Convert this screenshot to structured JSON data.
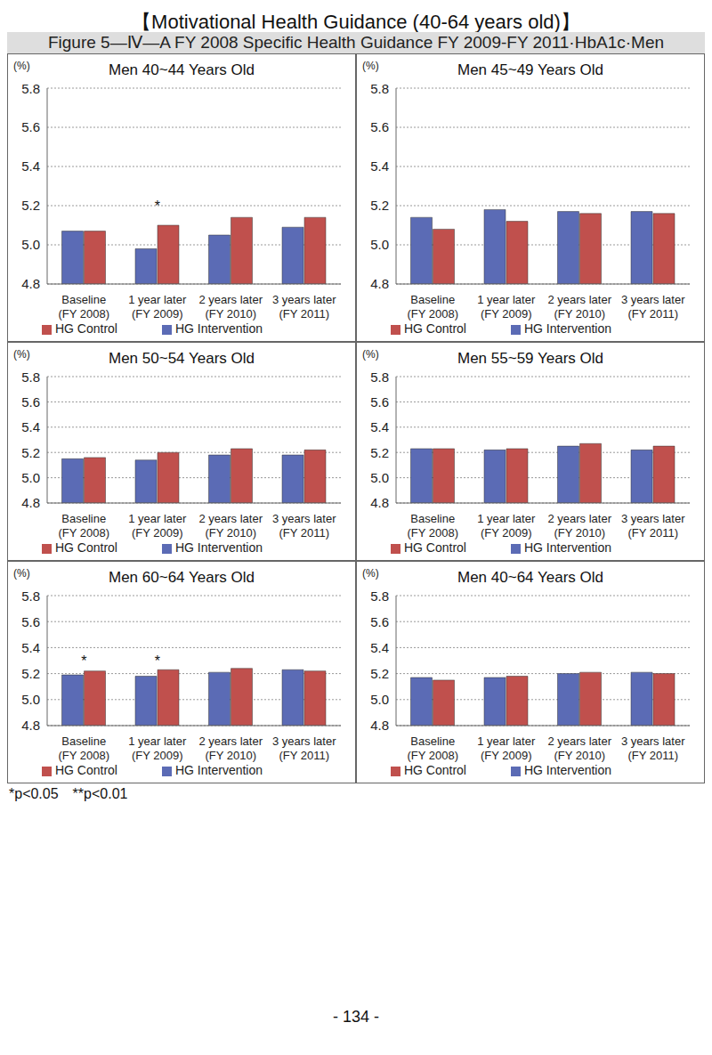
{
  "title": "【Motivational Health Guidance (40-64 years old)】",
  "figure_title": "Figure 5—Ⅳ—A FY 2008 Specific Health Guidance FY 2009-FY 2011·HbA1c·Men",
  "footnote": "*p<0.05　**p<0.01",
  "page_number": "- 134 -",
  "chart_data": [
    {
      "type": "bar",
      "title": "Men 40~44 Years Old",
      "y_label": "(%)",
      "categories": [
        "Baseline\n(FY 2008)",
        "1 year later\n(FY 2009)",
        "2 years later\n(FY 2010)",
        "3 years later\n(FY 2011)"
      ],
      "series": [
        {
          "name": "HG Intervention",
          "color": "#5b6bb5",
          "values": [
            5.07,
            4.98,
            5.05,
            5.09
          ]
        },
        {
          "name": "HG Control",
          "color": "#c0504d",
          "values": [
            5.07,
            5.1,
            5.14,
            5.14
          ]
        }
      ],
      "ylim": [
        4.8,
        5.8
      ],
      "yticks": [
        4.8,
        {
          "value": 5,
          "label": "5.0"
        },
        5.2,
        5.4,
        5.6,
        5.8
      ],
      "grid": true,
      "legend": "bottom",
      "annotations": [
        {
          "category": "1 year later\n(FY 2009)",
          "y": 5.2,
          "text": "*"
        }
      ]
    },
    {
      "type": "bar",
      "title": "Men 45~49 Years Old",
      "y_label": "(%)",
      "categories": [
        "Baseline\n(FY 2008)",
        "1 year later\n(FY 2009)",
        "2 years later\n(FY 2010)",
        "3 years later\n(FY 2011)"
      ],
      "series": [
        {
          "name": "HG Intervention",
          "color": "#5b6bb5",
          "values": [
            5.14,
            5.18,
            5.17,
            5.17
          ]
        },
        {
          "name": "HG Control",
          "color": "#c0504d",
          "values": [
            5.08,
            5.12,
            5.16,
            5.16
          ]
        }
      ],
      "ylim": [
        4.8,
        5.8
      ],
      "yticks": [
        4.8,
        {
          "value": 5,
          "label": "5.0"
        },
        5.2,
        5.4,
        5.6,
        5.8
      ],
      "grid": true,
      "legend": "bottom",
      "annotations": []
    },
    {
      "type": "bar",
      "title": "Men 50~54 Years Old",
      "y_label": "(%)",
      "categories": [
        "Baseline\n(FY 2008)",
        "1 year later\n(FY 2009)",
        "2 years later\n(FY 2010)",
        "3 years later\n(FY 2011)"
      ],
      "series": [
        {
          "name": "HG Intervention",
          "color": "#5b6bb5",
          "values": [
            5.15,
            5.14,
            5.18,
            5.18
          ]
        },
        {
          "name": "HG Control",
          "color": "#c0504d",
          "values": [
            5.16,
            5.2,
            5.23,
            5.22
          ]
        }
      ],
      "ylim": [
        4.8,
        5.8
      ],
      "yticks": [
        4.8,
        {
          "value": 5,
          "label": "5.0"
        },
        5.2,
        5.4,
        5.6,
        5.8
      ],
      "grid": true,
      "legend": "bottom",
      "annotations": []
    },
    {
      "type": "bar",
      "title": "Men 55~59 Years Old",
      "y_label": "(%)",
      "categories": [
        "Baseline\n(FY 2008)",
        "1 year later\n(FY 2009)",
        "2 years later\n(FY 2010)",
        "3 years later\n(FY 2011)"
      ],
      "series": [
        {
          "name": "HG Intervention",
          "color": "#5b6bb5",
          "values": [
            5.23,
            5.22,
            5.25,
            5.22
          ]
        },
        {
          "name": "HG Control",
          "color": "#c0504d",
          "values": [
            5.23,
            5.23,
            5.27,
            5.25
          ]
        }
      ],
      "ylim": [
        4.8,
        5.8
      ],
      "yticks": [
        4.8,
        {
          "value": 5,
          "label": "5.0"
        },
        5.2,
        5.4,
        5.6,
        5.8
      ],
      "grid": true,
      "legend": "bottom",
      "annotations": []
    },
    {
      "type": "bar",
      "title": "Men 60~64 Years Old",
      "y_label": "(%)",
      "categories": [
        "Baseline\n(FY 2008)",
        "1 year later\n(FY 2009)",
        "2 years later\n(FY 2010)",
        "3 years later\n(FY 2011)"
      ],
      "series": [
        {
          "name": "HG Intervention",
          "color": "#5b6bb5",
          "values": [
            5.19,
            5.18,
            5.21,
            5.23
          ]
        },
        {
          "name": "HG Control",
          "color": "#c0504d",
          "values": [
            5.22,
            5.23,
            5.24,
            5.22
          ]
        }
      ],
      "ylim": [
        4.8,
        5.8
      ],
      "yticks": [
        4.8,
        {
          "value": 5,
          "label": "5.0"
        },
        5.2,
        5.4,
        5.6,
        5.8
      ],
      "grid": true,
      "legend": "bottom",
      "annotations": [
        {
          "category": "Baseline\n(FY 2008)",
          "y": 5.3,
          "text": "*"
        },
        {
          "category": "1 year later\n(FY 2009)",
          "y": 5.3,
          "text": "*"
        }
      ]
    },
    {
      "type": "bar",
      "title": "Men 40~64 Years Old",
      "y_label": "(%)",
      "categories": [
        "Baseline\n(FY 2008)",
        "1 year later\n(FY 2009)",
        "2 years later\n(FY 2010)",
        "3 years later\n(FY 2011)"
      ],
      "series": [
        {
          "name": "HG Intervention",
          "color": "#5b6bb5",
          "values": [
            5.17,
            5.17,
            5.2,
            5.21
          ]
        },
        {
          "name": "HG Control",
          "color": "#c0504d",
          "values": [
            5.15,
            5.18,
            5.21,
            5.2
          ]
        }
      ],
      "ylim": [
        4.8,
        5.8
      ],
      "yticks": [
        4.8,
        {
          "value": 5,
          "label": "5.0"
        },
        5.2,
        5.4,
        5.6,
        5.8
      ],
      "grid": true,
      "legend": "bottom",
      "annotations": []
    }
  ]
}
